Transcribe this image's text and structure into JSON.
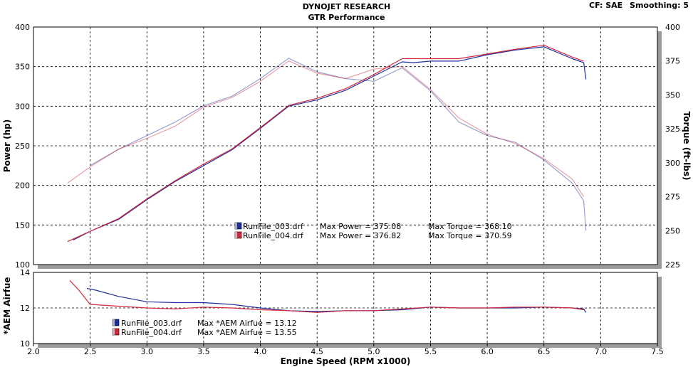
{
  "header": {
    "title": "DYNOJET RESEARCH",
    "subtitle": "GTR Performance",
    "cf_label": "CF: SAE",
    "smoothing_label": "Smoothing: 5"
  },
  "colors": {
    "run1": "#1f2f9a",
    "run2": "#d0283c"
  },
  "chart_data": [
    {
      "type": "line",
      "xlabel": "Engine Speed (RPM x1000)",
      "ylabel": "Power (hp)",
      "y2label": "Torque (ft-lbs)",
      "xlim": [
        2.0,
        7.5
      ],
      "ylim": [
        100,
        400
      ],
      "y2lim": [
        225,
        400
      ],
      "x_ticks": [
        "2.0",
        "2.5",
        "3.0",
        "3.5",
        "4.0",
        "4.5",
        "5.0",
        "5.5",
        "6.0",
        "6.5",
        "7.0",
        "7.5"
      ],
      "y_ticks": [
        "100",
        "150",
        "200",
        "250",
        "300",
        "350",
        "400"
      ],
      "y2_ticks": [
        "225",
        "250",
        "275",
        "300",
        "325",
        "350",
        "375",
        "400"
      ],
      "grid": true,
      "legend": [
        {
          "file": "RunFile_003.drf",
          "text": "Max Power = 375.08",
          "text2": "Max Torque = 368.10",
          "color": "#1f2f9a"
        },
        {
          "file": "RunFile_004.drf",
          "text": "Max Power = 376.82",
          "text2": "Max Torque = 370.59",
          "color": "#d0283c"
        }
      ],
      "series": [
        {
          "kind": "power",
          "color": "#1f2f9a",
          "x": [
            2.35,
            2.5,
            2.75,
            3.0,
            3.25,
            3.5,
            3.75,
            4.0,
            4.25,
            4.5,
            4.75,
            5.0,
            5.25,
            5.35,
            5.5,
            5.75,
            6.0,
            6.25,
            6.5,
            6.75,
            6.85,
            6.87
          ],
          "y": [
            131,
            142,
            157,
            182,
            205,
            225,
            245,
            272,
            300,
            308,
            320,
            338,
            356,
            355,
            357,
            357,
            365,
            371,
            375,
            360,
            355,
            334
          ]
        },
        {
          "kind": "power",
          "color": "#d0283c",
          "x": [
            2.3,
            2.5,
            2.75,
            3.0,
            3.25,
            3.5,
            3.75,
            4.0,
            4.25,
            4.5,
            4.75,
            5.0,
            5.25,
            5.5,
            5.75,
            6.0,
            6.25,
            6.5,
            6.75,
            6.85
          ],
          "y": [
            129,
            142,
            158,
            183,
            206,
            227,
            246,
            273,
            301,
            310,
            322,
            340,
            360,
            360,
            360,
            366,
            372,
            377,
            362,
            357
          ]
        },
        {
          "kind": "torque",
          "color": "#1f2f9a",
          "x": [
            2.5,
            2.75,
            3.0,
            3.25,
            3.5,
            3.75,
            4.0,
            4.25,
            4.5,
            4.75,
            5.0,
            5.25,
            5.5,
            5.75,
            6.0,
            6.25,
            6.5,
            6.75,
            6.85,
            6.87
          ],
          "y": [
            298,
            310,
            320,
            330,
            342,
            349,
            362,
            377,
            367,
            362,
            360,
            370,
            353,
            330,
            320,
            315,
            302,
            285,
            272,
            250
          ]
        },
        {
          "kind": "torque",
          "color": "#d0283c",
          "x": [
            2.3,
            2.5,
            2.75,
            3.0,
            3.25,
            3.5,
            3.75,
            4.0,
            4.25,
            4.5,
            4.75,
            5.0,
            5.25,
            5.5,
            5.75,
            6.0,
            6.25,
            6.5,
            6.75,
            6.85
          ],
          "y": [
            285,
            297,
            310,
            318,
            327,
            341,
            348,
            360,
            375,
            366,
            362,
            369,
            371,
            354,
            333,
            321,
            314,
            303,
            288,
            275
          ]
        }
      ]
    },
    {
      "type": "line",
      "xlabel": "Engine Speed (RPM x1000)",
      "ylabel": "*AEM Airfue",
      "xlim": [
        2.0,
        7.5
      ],
      "ylim": [
        10,
        14
      ],
      "y_ticks": [
        "10",
        "12",
        "14"
      ],
      "grid": true,
      "legend": [
        {
          "file": "RunFile_003.drf",
          "text": "Max *AEM Airfue = 13.12",
          "color": "#1f2f9a"
        },
        {
          "file": "RunFile_004.drf",
          "text": "Max *AEM Airfue = 13.55",
          "color": "#d0283c"
        }
      ],
      "series": [
        {
          "color": "#1f2f9a",
          "x": [
            2.47,
            2.55,
            2.75,
            3.0,
            3.25,
            3.5,
            3.75,
            4.0,
            4.25,
            4.5,
            4.75,
            5.0,
            5.25,
            5.5,
            5.75,
            6.0,
            6.25,
            6.5,
            6.75,
            6.85,
            6.87
          ],
          "y": [
            13.1,
            13.0,
            12.65,
            12.35,
            12.3,
            12.3,
            12.2,
            12.0,
            11.85,
            11.8,
            11.85,
            11.85,
            11.9,
            12.05,
            12.0,
            12.0,
            12.0,
            12.05,
            12.0,
            11.95,
            11.75
          ]
        },
        {
          "color": "#d0283c",
          "x": [
            2.32,
            2.4,
            2.5,
            2.75,
            3.0,
            3.25,
            3.5,
            3.75,
            4.0,
            4.25,
            4.5,
            4.75,
            5.0,
            5.25,
            5.5,
            5.75,
            6.0,
            6.25,
            6.5,
            6.75,
            6.85
          ],
          "y": [
            13.55,
            13.0,
            12.2,
            12.1,
            12.0,
            11.95,
            12.05,
            12.0,
            11.9,
            11.85,
            11.75,
            11.85,
            11.85,
            11.95,
            12.05,
            12.0,
            12.0,
            12.05,
            12.05,
            12.0,
            11.9
          ]
        }
      ]
    }
  ]
}
